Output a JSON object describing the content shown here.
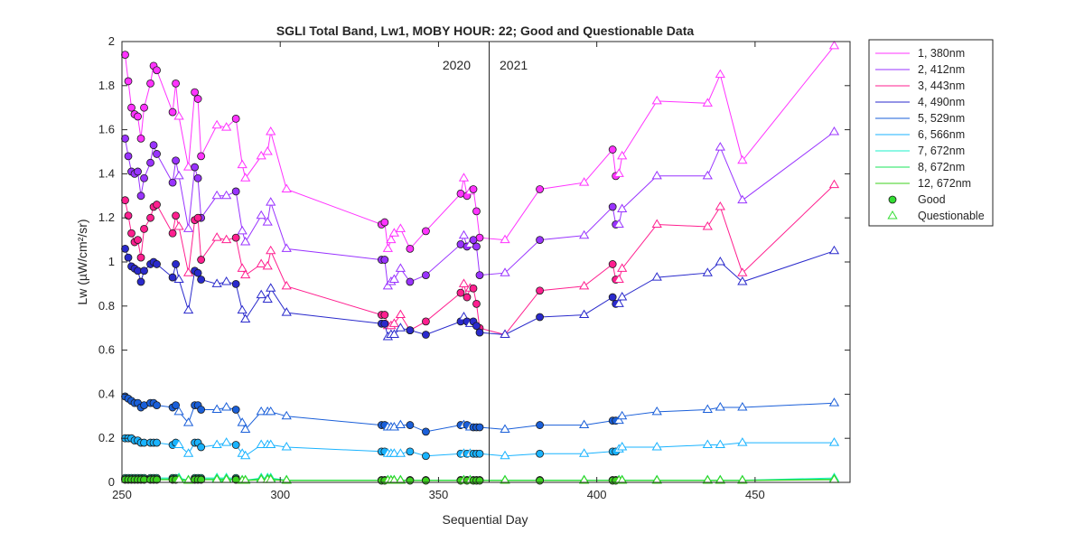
{
  "chart_data": {
    "type": "line",
    "title": "SGLI Total Band,  Lw1, MOBY HOUR: 22;  Good and Questionable Data",
    "xlabel": "Sequential Day",
    "ylabel": "Lw (µW/cm²/sr)",
    "xlim": [
      250,
      480
    ],
    "ylim": [
      0,
      2
    ],
    "xticks": [
      250,
      300,
      350,
      400,
      450
    ],
    "yticks": [
      0,
      0.2,
      0.4,
      0.6,
      0.8,
      1,
      1.2,
      1.4,
      1.6,
      1.8,
      2
    ],
    "grid": false,
    "year_divider": {
      "x": 366,
      "left_label": "2020",
      "right_label": "2021"
    },
    "legend_position": "outside-right",
    "legend_entries": [
      "1, 380nm",
      "2, 412nm",
      "3, 443nm",
      "4, 490nm",
      "5, 529nm",
      "6, 566nm",
      "7, 672nm",
      "8, 672nm",
      "12, 672nm",
      "Good",
      "Questionable"
    ],
    "good_marker": {
      "label": "Good",
      "shape": "circle",
      "color": "#33dd33"
    },
    "questionable_marker": {
      "label": "Questionable",
      "shape": "triangle",
      "color": "#33dd33"
    },
    "x": [
      251,
      252,
      253,
      254,
      255,
      256,
      257,
      259,
      260,
      261,
      266,
      267,
      268,
      271,
      273,
      274,
      275,
      280,
      283,
      286,
      288,
      289,
      294,
      296,
      297,
      302,
      332,
      333,
      334,
      335,
      336,
      338,
      341,
      346,
      357,
      358,
      359,
      360,
      361,
      362,
      363,
      371,
      382,
      396,
      405,
      406,
      407,
      408,
      419,
      435,
      439,
      446,
      475
    ],
    "quality": [
      "g",
      "g",
      "g",
      "g",
      "g",
      "g",
      "g",
      "g",
      "g",
      "g",
      "g",
      "g",
      "q",
      "q",
      "g",
      "g",
      "g",
      "q",
      "q",
      "g",
      "q",
      "q",
      "q",
      "q",
      "q",
      "q",
      "g",
      "g",
      "q",
      "q",
      "q",
      "q",
      "g",
      "g",
      "g",
      "q",
      "g",
      "q",
      "g",
      "g",
      "g",
      "q",
      "g",
      "q",
      "g",
      "g",
      "q",
      "q",
      "q",
      "q",
      "q",
      "q",
      "q"
    ],
    "series": [
      {
        "name": "1, 380nm",
        "color": "#ff33ff",
        "values": [
          1.94,
          1.82,
          1.7,
          1.67,
          1.66,
          1.56,
          1.7,
          1.81,
          1.89,
          1.87,
          1.68,
          1.81,
          1.66,
          1.43,
          1.77,
          1.74,
          1.48,
          1.62,
          1.61,
          1.65,
          1.44,
          1.38,
          1.48,
          1.5,
          1.59,
          1.33,
          1.17,
          1.18,
          1.06,
          1.1,
          1.13,
          1.15,
          1.06,
          1.14,
          1.31,
          1.38,
          1.3,
          1.32,
          1.33,
          1.23,
          1.11,
          1.1,
          1.33,
          1.36,
          1.51,
          1.39,
          1.4,
          1.48,
          1.73,
          1.72,
          1.85,
          1.46,
          1.98
        ]
      },
      {
        "name": "2, 412nm",
        "color": "#9933ff",
        "values": [
          1.56,
          1.48,
          1.41,
          1.4,
          1.41,
          1.3,
          1.38,
          1.45,
          1.53,
          1.49,
          1.36,
          1.46,
          1.39,
          1.15,
          1.43,
          1.38,
          1.2,
          1.3,
          1.3,
          1.32,
          1.14,
          1.09,
          1.21,
          1.18,
          1.27,
          1.06,
          1.01,
          1.01,
          0.89,
          0.91,
          0.92,
          0.97,
          0.91,
          0.94,
          1.08,
          1.12,
          1.07,
          1.08,
          1.1,
          1.07,
          0.94,
          0.95,
          1.1,
          1.12,
          1.25,
          1.17,
          1.17,
          1.24,
          1.39,
          1.39,
          1.52,
          1.28,
          1.59
        ]
      },
      {
        "name": "3, 443nm",
        "color": "#ff1f8f",
        "values": [
          1.28,
          1.21,
          1.13,
          1.09,
          1.1,
          1.02,
          1.15,
          1.2,
          1.25,
          1.26,
          1.13,
          1.21,
          1.16,
          0.95,
          1.19,
          1.2,
          1.01,
          1.11,
          1.1,
          1.11,
          0.97,
          0.94,
          0.99,
          0.98,
          1.05,
          0.89,
          0.76,
          0.76,
          0.71,
          0.71,
          0.72,
          0.76,
          0.69,
          0.73,
          0.86,
          0.9,
          0.84,
          0.88,
          0.88,
          0.81,
          0.7,
          0.67,
          0.87,
          0.89,
          0.99,
          0.92,
          0.92,
          0.97,
          1.17,
          1.16,
          1.25,
          0.95,
          1.35
        ]
      },
      {
        "name": "4, 490nm",
        "color": "#2a2acc",
        "values": [
          1.06,
          1.02,
          0.98,
          0.97,
          0.96,
          0.91,
          0.96,
          0.99,
          1.0,
          0.99,
          0.93,
          0.99,
          0.92,
          0.78,
          0.96,
          0.95,
          0.92,
          0.9,
          0.91,
          0.9,
          0.78,
          0.74,
          0.85,
          0.83,
          0.88,
          0.77,
          0.72,
          0.72,
          0.66,
          0.67,
          0.67,
          0.7,
          0.69,
          0.67,
          0.73,
          0.75,
          0.73,
          0.72,
          0.73,
          0.71,
          0.68,
          0.67,
          0.75,
          0.76,
          0.84,
          0.81,
          0.81,
          0.84,
          0.93,
          0.95,
          1.0,
          0.91,
          1.05
        ]
      },
      {
        "name": "5, 529nm",
        "color": "#1a5fd9",
        "values": [
          0.39,
          0.38,
          0.37,
          0.36,
          0.36,
          0.34,
          0.35,
          0.36,
          0.36,
          0.35,
          0.34,
          0.35,
          0.32,
          0.27,
          0.35,
          0.35,
          0.33,
          0.33,
          0.34,
          0.33,
          0.27,
          0.24,
          0.32,
          0.32,
          0.32,
          0.3,
          0.26,
          0.26,
          0.25,
          0.25,
          0.25,
          0.26,
          0.26,
          0.23,
          0.26,
          0.26,
          0.26,
          0.25,
          0.25,
          0.25,
          0.25,
          0.24,
          0.26,
          0.26,
          0.28,
          0.28,
          0.28,
          0.3,
          0.32,
          0.33,
          0.34,
          0.34,
          0.36
        ]
      },
      {
        "name": "6, 566nm",
        "color": "#19b3ff",
        "values": [
          0.2,
          0.2,
          0.2,
          0.19,
          0.19,
          0.18,
          0.18,
          0.18,
          0.18,
          0.18,
          0.17,
          0.18,
          0.17,
          0.13,
          0.18,
          0.18,
          0.16,
          0.17,
          0.18,
          0.17,
          0.13,
          0.12,
          0.17,
          0.17,
          0.17,
          0.16,
          0.14,
          0.14,
          0.13,
          0.13,
          0.13,
          0.13,
          0.14,
          0.12,
          0.13,
          0.13,
          0.13,
          0.13,
          0.13,
          0.13,
          0.13,
          0.12,
          0.13,
          0.13,
          0.14,
          0.14,
          0.15,
          0.16,
          0.16,
          0.17,
          0.17,
          0.18,
          0.18
        ]
      },
      {
        "name": "7, 672nm",
        "color": "#19f0c8",
        "values": [
          0.02,
          0.02,
          0.02,
          0.02,
          0.02,
          0.02,
          0.02,
          0.02,
          0.02,
          0.02,
          0.02,
          0.02,
          0.02,
          0.01,
          0.02,
          0.02,
          0.02,
          0.02,
          0.02,
          0.02,
          0.01,
          0.01,
          0.02,
          0.02,
          0.02,
          0.01,
          0.01,
          0.01,
          0.01,
          0.01,
          0.01,
          0.01,
          0.01,
          0.01,
          0.01,
          0.01,
          0.01,
          0.01,
          0.01,
          0.01,
          0.01,
          0.01,
          0.01,
          0.01,
          0.01,
          0.01,
          0.01,
          0.01,
          0.01,
          0.01,
          0.01,
          0.01,
          0.02
        ]
      },
      {
        "name": "8, 672nm",
        "color": "#19e65a",
        "values": [
          0.015,
          0.015,
          0.015,
          0.015,
          0.015,
          0.015,
          0.015,
          0.015,
          0.015,
          0.015,
          0.015,
          0.015,
          0.015,
          0.01,
          0.015,
          0.015,
          0.015,
          0.015,
          0.015,
          0.015,
          0.01,
          0.01,
          0.015,
          0.015,
          0.015,
          0.01,
          0.01,
          0.01,
          0.01,
          0.01,
          0.01,
          0.01,
          0.01,
          0.01,
          0.01,
          0.01,
          0.01,
          0.01,
          0.01,
          0.01,
          0.01,
          0.01,
          0.01,
          0.01,
          0.01,
          0.01,
          0.01,
          0.01,
          0.01,
          0.01,
          0.01,
          0.01,
          0.015
        ]
      },
      {
        "name": "12, 672nm",
        "color": "#3cd21e",
        "values": [
          0.012,
          0.012,
          0.012,
          0.012,
          0.012,
          0.012,
          0.012,
          0.012,
          0.012,
          0.012,
          0.012,
          0.012,
          0.012,
          0.008,
          0.012,
          0.012,
          0.012,
          0.012,
          0.012,
          0.012,
          0.008,
          0.008,
          0.012,
          0.012,
          0.012,
          0.008,
          0.008,
          0.008,
          0.008,
          0.008,
          0.008,
          0.008,
          0.008,
          0.008,
          0.008,
          0.008,
          0.008,
          0.008,
          0.008,
          0.008,
          0.008,
          0.008,
          0.008,
          0.008,
          0.008,
          0.008,
          0.008,
          0.008,
          0.008,
          0.008,
          0.008,
          0.008,
          0.012
        ]
      }
    ]
  }
}
